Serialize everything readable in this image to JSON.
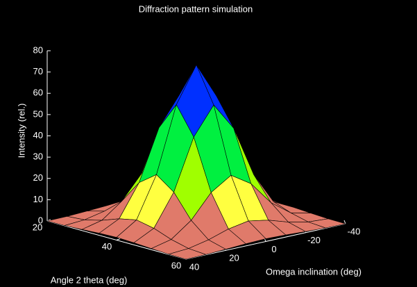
{
  "chart_data": {
    "type": "surface",
    "title": "Diffraction pattern simulation",
    "xlabel": "Angle 2 theta (deg)",
    "ylabel": "Omega inclination (deg)",
    "zlabel": "Intensity (rel.)",
    "x": [
      20,
      25,
      30,
      35,
      40,
      45,
      50,
      55,
      60
    ],
    "y": [
      -40,
      -30,
      -20,
      -10,
      0,
      10,
      20,
      30,
      40
    ],
    "z": [
      [
        0,
        0.1,
        0.5,
        1.0,
        1.3,
        1.0,
        0.5,
        0.1,
        0
      ],
      [
        0.1,
        0.7,
        2.7,
        5.7,
        7.4,
        5.7,
        2.7,
        0.7,
        0.1
      ],
      [
        0.5,
        2.7,
        9.6,
        20.6,
        26.6,
        20.6,
        9.6,
        2.7,
        0.5
      ],
      [
        1.0,
        5.7,
        20.6,
        44.4,
        57.4,
        44.4,
        20.6,
        5.7,
        1.0
      ],
      [
        1.3,
        7.4,
        26.6,
        57.4,
        74,
        57.4,
        26.6,
        7.4,
        1.3
      ],
      [
        1.0,
        5.7,
        20.6,
        44.4,
        57.4,
        44.4,
        20.6,
        5.7,
        1.0
      ],
      [
        0.5,
        2.7,
        9.6,
        20.6,
        26.6,
        20.6,
        9.6,
        2.7,
        0.5
      ],
      [
        0.1,
        0.7,
        2.7,
        5.7,
        7.4,
        5.7,
        2.7,
        0.7,
        0.1
      ],
      [
        0,
        0.1,
        0.5,
        1.0,
        1.3,
        1.0,
        0.5,
        0.1,
        0
      ]
    ],
    "xlim": [
      20,
      60
    ],
    "xticks": [
      20,
      40,
      60
    ],
    "ylim": [
      -40,
      40
    ],
    "yticks": [
      40,
      20,
      0,
      -20,
      -40
    ],
    "zlim": [
      0,
      80
    ],
    "zticks": [
      0,
      10,
      20,
      30,
      40,
      50,
      60,
      70,
      80
    ],
    "colormap": [
      "#e07a6a",
      "#ffff40",
      "#a0ff00",
      "#00f040",
      "#00ffff",
      "#0030ff",
      "#ff00ff",
      "#ff0000"
    ],
    "edge_color": "#000000"
  }
}
